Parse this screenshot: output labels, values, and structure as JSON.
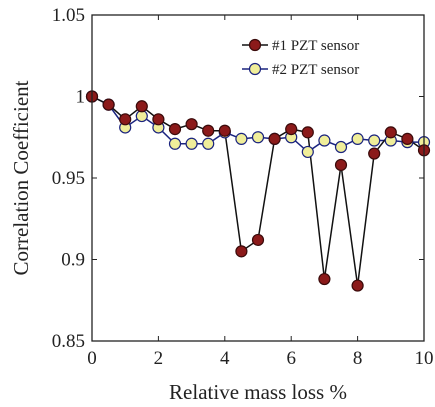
{
  "chart_data": {
    "type": "line",
    "xlabel": "Relative mass loss %",
    "ylabel": "Correlation Coefficient",
    "xlim": [
      0,
      10
    ],
    "ylim": [
      0.85,
      1.05
    ],
    "x_ticks": [
      0,
      2,
      4,
      6,
      8,
      10
    ],
    "y_ticks": [
      0.85,
      0.9,
      0.95,
      1,
      1.05
    ],
    "y_tick_labels": [
      "0.85",
      "0.9",
      "0.95",
      "1",
      "1.05"
    ],
    "grid": false,
    "legend_position": "top-right",
    "series": [
      {
        "name": "#1 PZT sensor",
        "color": "#8b1a1a",
        "marker_fill": "#8b1a1a",
        "line_color": "#111111",
        "x": [
          0,
          0.5,
          1,
          1.5,
          2,
          2.5,
          3,
          3.5,
          4,
          4.5,
          5,
          5.5,
          6,
          6.5,
          7,
          7.5,
          8,
          8.5,
          9,
          9.5,
          10
        ],
        "y": [
          1.0,
          0.995,
          0.986,
          0.994,
          0.986,
          0.98,
          0.983,
          0.979,
          0.979,
          0.905,
          0.912,
          0.974,
          0.98,
          0.978,
          0.888,
          0.958,
          0.884,
          0.965,
          0.978,
          0.974,
          0.967
        ]
      },
      {
        "name": "#2 PZT sensor",
        "color": "#1a237e",
        "marker_fill": "#f0ee9a",
        "line_color": "#1a237e",
        "x": [
          0,
          0.5,
          1,
          1.5,
          2,
          2.5,
          3,
          3.5,
          4,
          4.5,
          5,
          5.5,
          6,
          6.5,
          7,
          7.5,
          8,
          8.5,
          9,
          9.5,
          10
        ],
        "y": [
          1.0,
          0.995,
          0.981,
          0.988,
          0.981,
          0.971,
          0.971,
          0.971,
          0.978,
          0.974,
          0.975,
          0.974,
          0.975,
          0.966,
          0.973,
          0.969,
          0.974,
          0.973,
          0.973,
          0.972,
          0.972
        ]
      }
    ]
  }
}
